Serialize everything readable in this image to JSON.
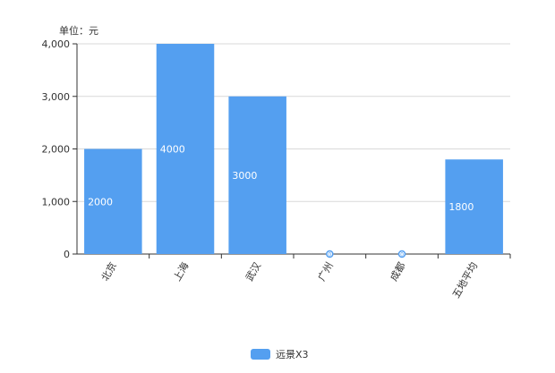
{
  "chart_data": {
    "type": "bar",
    "unit_label": "单位：元",
    "categories": [
      "北京",
      "上海",
      "武汉",
      "广州",
      "成都",
      "五地平均"
    ],
    "series": [
      {
        "name": "远景X3",
        "values": [
          2000,
          4000,
          3000,
          0,
          0,
          1800
        ],
        "data_labels": [
          "2000",
          "4000",
          "3000",
          "0",
          "0",
          "1800"
        ]
      }
    ],
    "ylim": [
      0,
      4000
    ],
    "yticks": [
      0,
      1000,
      2000,
      3000,
      4000
    ],
    "ytick_labels": [
      "0",
      "1,000",
      "2,000",
      "3,000",
      "4,000"
    ],
    "grid": true,
    "legend_position": "bottom",
    "colors": {
      "bar": "#549FF0",
      "grid": "#D9D9D9",
      "axis": "#333333",
      "text": "#333333",
      "label": "#FFFFFF"
    }
  }
}
